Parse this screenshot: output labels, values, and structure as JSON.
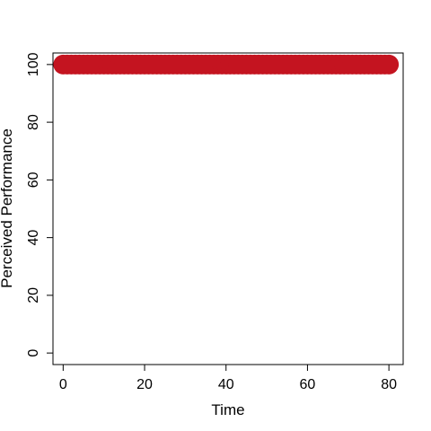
{
  "chart_data": {
    "type": "line",
    "title": "",
    "xlabel": "Time",
    "ylabel": "Perceived Performance",
    "xlim": [
      -2.5,
      83.5
    ],
    "ylim": [
      -4,
      104
    ],
    "x_ticks": [
      0,
      20,
      40,
      60,
      80
    ],
    "y_ticks": [
      0,
      20,
      40,
      60,
      80,
      100
    ],
    "x_tick_labels": [
      "0",
      "20",
      "40",
      "60",
      "80"
    ],
    "y_tick_labels": [
      "0",
      "20",
      "40",
      "60",
      "80",
      "100"
    ],
    "grid": false,
    "series": [
      {
        "color": "#c41420",
        "marker": "filled-circle",
        "x": [
          0,
          1,
          2,
          3,
          4,
          5,
          6,
          7,
          8,
          9,
          10,
          11,
          12,
          13,
          14,
          15,
          16,
          17,
          18,
          19,
          20,
          21,
          22,
          23,
          24,
          25,
          26,
          27,
          28,
          29,
          30,
          31,
          32,
          33,
          34,
          35,
          36,
          37,
          38,
          39,
          40,
          41,
          42,
          43,
          44,
          45,
          46,
          47,
          48,
          49,
          50,
          51,
          52,
          53,
          54,
          55,
          56,
          57,
          58,
          59,
          60,
          61,
          62,
          63,
          64,
          65,
          66,
          67,
          68,
          69,
          70,
          71,
          72,
          73,
          74,
          75,
          76,
          77,
          78,
          79,
          80
        ],
        "y": [
          100,
          100,
          100,
          100,
          100,
          100,
          100,
          100,
          100,
          100,
          100,
          100,
          100,
          100,
          100,
          100,
          100,
          100,
          100,
          100,
          100,
          100,
          100,
          100,
          100,
          100,
          100,
          100,
          100,
          100,
          100,
          100,
          100,
          100,
          100,
          100,
          100,
          100,
          100,
          100,
          100,
          100,
          100,
          100,
          100,
          100,
          100,
          100,
          100,
          100,
          100,
          100,
          100,
          100,
          100,
          100,
          100,
          100,
          100,
          100,
          100,
          100,
          100,
          100,
          100,
          100,
          100,
          100,
          100,
          100,
          100,
          100,
          100,
          100,
          100,
          100,
          100,
          100,
          100,
          100,
          100
        ]
      }
    ]
  }
}
